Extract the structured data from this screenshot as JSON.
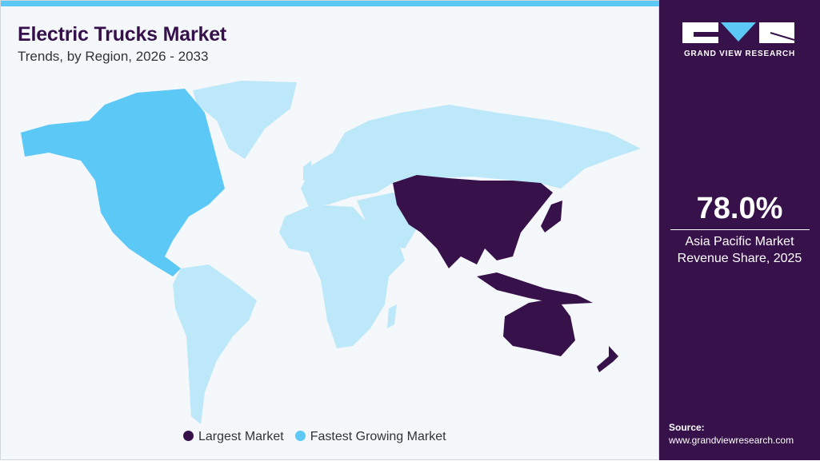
{
  "header": {
    "title": "Electric Trucks Market",
    "subtitle": "Trends, by Region, 2026 - 2033"
  },
  "colors": {
    "largest": "#37114a",
    "fastest": "#5bc8f5",
    "other": "#bde8f9",
    "sidebar": "#37114a"
  },
  "map": {
    "regions": [
      {
        "name": "North America",
        "category": "Fastest Growing Market"
      },
      {
        "name": "Asia Pacific",
        "category": "Largest Market"
      },
      {
        "name": "Europe",
        "category": "other"
      },
      {
        "name": "Latin America",
        "category": "other"
      },
      {
        "name": "Middle East & Africa",
        "category": "other"
      }
    ]
  },
  "legend": [
    {
      "label": "Largest Market",
      "color": "#37114a"
    },
    {
      "label": "Fastest Growing Market",
      "color": "#5bc8f5"
    }
  ],
  "sidebar": {
    "brand": "GRAND VIEW RESEARCH",
    "stat_value": "78.0%",
    "stat_label_1": "Asia Pacific Market",
    "stat_label_2": "Revenue Share, 2025",
    "source_label": "Source:",
    "source_url": "www.grandviewresearch.com"
  }
}
